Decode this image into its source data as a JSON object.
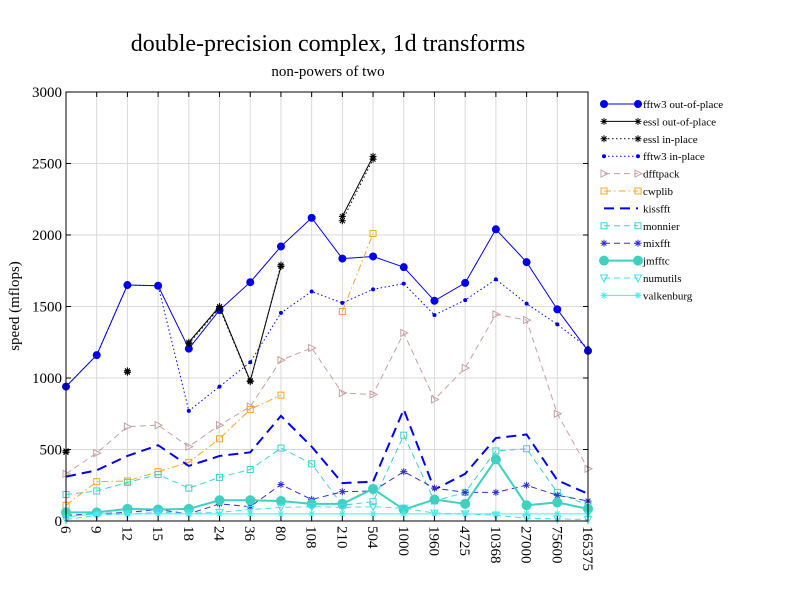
{
  "chart_data": {
    "type": "line",
    "title": "double-precision complex, 1d transforms",
    "subtitle": "non-powers of two",
    "ylabel": "speed (mflops)",
    "xlabel": "",
    "ylim": [
      0,
      3000
    ],
    "yticks": [
      0,
      500,
      1000,
      1500,
      2000,
      2500,
      3000
    ],
    "grid": true,
    "legend_position": "right",
    "categories": [
      "6",
      "9",
      "12",
      "15",
      "18",
      "24",
      "36",
      "80",
      "108",
      "210",
      "504",
      "1000",
      "1960",
      "4725",
      "10368",
      "27000",
      "75600",
      "165375"
    ],
    "series": [
      {
        "name": "fftw3 out-of-place",
        "color": "#0000ee",
        "dash": "solid",
        "marker": "circle-filled",
        "values": [
          940,
          1160,
          1650,
          1645,
          1205,
          1475,
          1670,
          1920,
          2120,
          1835,
          1850,
          1775,
          1540,
          1665,
          2040,
          1810,
          1480,
          1190
        ]
      },
      {
        "name": "essl out-of-place",
        "color": "#000000",
        "dash": "solid",
        "marker": "star",
        "values": [
          490,
          null,
          1050,
          null,
          1250,
          1500,
          980,
          1780,
          null,
          2130,
          2550,
          null,
          null,
          null,
          null,
          null,
          null,
          null
        ]
      },
      {
        "name": "essl in-place",
        "color": "#000000",
        "dash": "dotted",
        "marker": "star",
        "values": [
          480,
          null,
          1040,
          null,
          1240,
          1490,
          975,
          1790,
          null,
          2100,
          2530,
          null,
          null,
          null,
          null,
          null,
          null,
          null
        ]
      },
      {
        "name": "fftw3 in-place",
        "color": "#0000ee",
        "dash": "dotted",
        "marker": "dot",
        "values": [
          940,
          1160,
          1650,
          1645,
          770,
          940,
          1110,
          1455,
          1605,
          1525,
          1620,
          1660,
          1440,
          1545,
          1690,
          1520,
          1375,
          1210
        ]
      },
      {
        "name": "dfftpack",
        "color": "#c9a0a0",
        "dash": "dashed",
        "marker": "triangle-right",
        "values": [
          330,
          475,
          660,
          670,
          520,
          670,
          800,
          1125,
          1210,
          895,
          885,
          1315,
          850,
          1070,
          1445,
          1405,
          750,
          365
        ]
      },
      {
        "name": "cwplib",
        "color": "#f5a623",
        "dash": "dashdot",
        "marker": "square",
        "values": [
          110,
          275,
          280,
          345,
          410,
          575,
          780,
          880,
          null,
          1465,
          2010,
          null,
          null,
          null,
          null,
          null,
          null,
          null
        ]
      },
      {
        "name": "kissfft",
        "color": "#0000ee",
        "dash": "longdash",
        "marker": "none",
        "values": [
          310,
          355,
          455,
          530,
          385,
          455,
          480,
          735,
          520,
          265,
          275,
          780,
          220,
          330,
          580,
          605,
          285,
          190
        ]
      },
      {
        "name": "monnier",
        "color": "#40d0d0",
        "dash": "dashed",
        "marker": "square",
        "values": [
          185,
          210,
          270,
          325,
          230,
          305,
          360,
          510,
          400,
          110,
          135,
          600,
          140,
          200,
          490,
          505,
          200,
          110
        ]
      },
      {
        "name": "mixfft",
        "color": "#3030cc",
        "dash": "dashed",
        "marker": "star",
        "values": [
          40,
          50,
          60,
          80,
          50,
          120,
          100,
          255,
          150,
          205,
          210,
          345,
          230,
          200,
          200,
          250,
          180,
          140
        ]
      },
      {
        "name": "jmfftc",
        "color": "#40d0c0",
        "dash": "solid",
        "marker": "circle-filled-large",
        "values": [
          60,
          60,
          85,
          80,
          85,
          145,
          145,
          140,
          120,
          120,
          225,
          80,
          150,
          120,
          430,
          110,
          130,
          85
        ]
      },
      {
        "name": "numutils",
        "color": "#40e0f0",
        "dash": "dashed",
        "marker": "triangle-down",
        "values": [
          10,
          40,
          50,
          60,
          55,
          60,
          80,
          95,
          100,
          95,
          100,
          90,
          55,
          50,
          40,
          20,
          15,
          10
        ]
      },
      {
        "name": "valkenburg",
        "color": "#40f0f0",
        "dash": "solid",
        "marker": "star",
        "values": [
          30,
          50,
          50,
          50,
          50,
          50,
          50,
          50,
          50,
          50,
          50,
          50,
          50,
          50,
          50,
          50,
          50,
          50
        ]
      }
    ]
  }
}
